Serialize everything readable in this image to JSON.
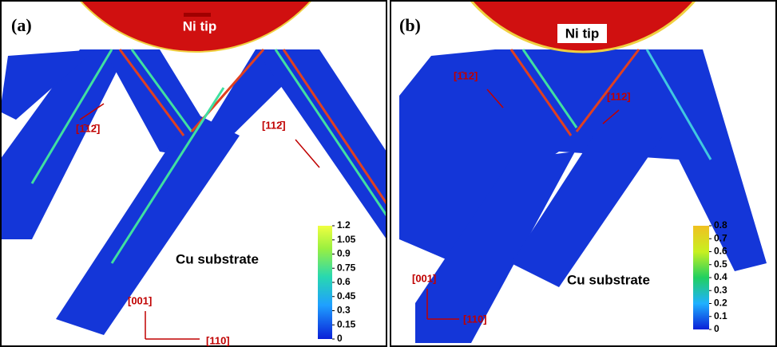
{
  "panels": [
    {
      "label": "(a)",
      "tip_label": "Ni tip",
      "substrate_label": "Cu substrate",
      "directions": [
        "[1̄12̄]",
        "[112̄]"
      ],
      "axis_labels": [
        "[001]",
        "[110]"
      ],
      "colorbar": {
        "ticks": [
          1.2,
          1.05,
          0.9,
          0.75,
          0.6,
          0.45,
          0.3,
          0.15,
          0
        ]
      }
    },
    {
      "label": "(b)",
      "tip_label": "Ni tip",
      "substrate_label": "Cu substrate",
      "directions": [
        "[1̄12]",
        "[112]"
      ],
      "axis_labels": [
        "[001]",
        "[110]"
      ],
      "colorbar": {
        "ticks": [
          0.8,
          0.7,
          0.6,
          0.5,
          0.4,
          0.3,
          0.2,
          0.1,
          0
        ]
      }
    }
  ]
}
